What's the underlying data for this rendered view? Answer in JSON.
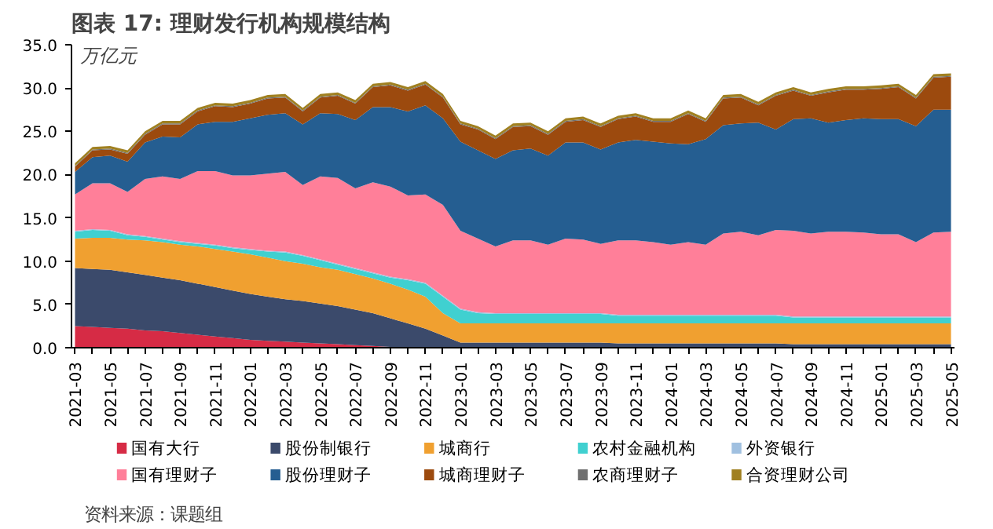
{
  "chart_data": {
    "type": "area",
    "stacked": true,
    "title": "图表 17: 理财发行机构规模结构",
    "ylabel": "万亿元",
    "annotations": [
      "资料来源：课题组"
    ],
    "categories": [
      "2021-03",
      null,
      "2021-05",
      null,
      "2021-07",
      null,
      "2021-09",
      null,
      "2021-11",
      null,
      "2022-01",
      null,
      "2022-03",
      null,
      "2022-05",
      null,
      "2022-07",
      null,
      "2022-09",
      null,
      "2022-11",
      null,
      "2023-01",
      null,
      "2023-03",
      null,
      "2023-05",
      null,
      "2023-07",
      null,
      "2023-09",
      null,
      "2023-11",
      null,
      "2024-01",
      null,
      "2024-03",
      null,
      "2024-05",
      null,
      "2024-07",
      null,
      "2024-09",
      null,
      "2024-11",
      null,
      "2025-01",
      null,
      "2025-03",
      null,
      "2025-05"
    ],
    "ylim": [
      0,
      35
    ],
    "yticks": [
      {
        "value": 0,
        "label": "0.0"
      },
      {
        "value": 5,
        "label": "5.0"
      },
      {
        "value": 10,
        "label": "10.0"
      },
      {
        "value": 15,
        "label": "15.0"
      },
      {
        "value": 20,
        "label": "20.0"
      },
      {
        "value": 25,
        "label": "25.0"
      },
      {
        "value": 30,
        "label": "30.0"
      },
      {
        "value": 35,
        "label": "35.0"
      }
    ],
    "grid": false,
    "legend": "bottom",
    "series": [
      {
        "name": "国有大行",
        "color": "#d62b45",
        "values": [
          2.5,
          2.4,
          2.3,
          2.2,
          2.0,
          1.9,
          1.7,
          1.5,
          1.3,
          1.1,
          0.9,
          0.8,
          0.7,
          0.6,
          0.5,
          0.4,
          0.3,
          0.2,
          0.1,
          0.1,
          0.1,
          0,
          0,
          0,
          0,
          0,
          0,
          0,
          0,
          0,
          0,
          0,
          0,
          0,
          0,
          0,
          0,
          0,
          0,
          0,
          0,
          0,
          0,
          0,
          0,
          0,
          0,
          0,
          0,
          0,
          0
        ]
      },
      {
        "name": "股份制银行",
        "color": "#3b4a6b",
        "values": [
          6.7,
          6.7,
          6.7,
          6.5,
          6.4,
          6.2,
          6.1,
          5.9,
          5.7,
          5.5,
          5.3,
          5.1,
          4.9,
          4.8,
          4.6,
          4.4,
          4.1,
          3.8,
          3.3,
          2.7,
          2.1,
          1.4,
          0.6,
          0.6,
          0.6,
          0.6,
          0.6,
          0.6,
          0.6,
          0.6,
          0.6,
          0.5,
          0.5,
          0.5,
          0.5,
          0.5,
          0.5,
          0.5,
          0.5,
          0.5,
          0.5,
          0.4,
          0.4,
          0.4,
          0.4,
          0.4,
          0.4,
          0.4,
          0.4,
          0.4,
          0.4
        ]
      },
      {
        "name": "城商行",
        "color": "#f0a030",
        "values": [
          3.4,
          3.6,
          3.7,
          3.8,
          4.0,
          4.1,
          4.1,
          4.3,
          4.4,
          4.5,
          4.6,
          4.5,
          4.4,
          4.3,
          4.2,
          4.2,
          4.1,
          4.0,
          4.0,
          3.9,
          3.7,
          2.6,
          2.2,
          2.2,
          2.2,
          2.2,
          2.2,
          2.2,
          2.2,
          2.2,
          2.2,
          2.3,
          2.3,
          2.3,
          2.3,
          2.3,
          2.3,
          2.3,
          2.3,
          2.3,
          2.3,
          2.4,
          2.4,
          2.4,
          2.4,
          2.4,
          2.4,
          2.4,
          2.4,
          2.4,
          2.4
        ]
      },
      {
        "name": "农村金融机构",
        "color": "#40d0d0",
        "values": [
          0.8,
          0.9,
          0.8,
          0.5,
          0.4,
          0.3,
          0.3,
          0.3,
          0.4,
          0.4,
          0.5,
          0.7,
          1.0,
          0.9,
          0.8,
          0.6,
          0.6,
          0.6,
          0.7,
          1.1,
          1.5,
          1.9,
          1.6,
          1.2,
          1.1,
          1.1,
          1.1,
          1.1,
          1.1,
          1.1,
          1.1,
          0.9,
          0.9,
          0.9,
          0.9,
          0.9,
          0.9,
          0.9,
          0.9,
          0.9,
          0.9,
          0.7,
          0.7,
          0.7,
          0.7,
          0.7,
          0.7,
          0.7,
          0.7,
          0.7,
          0.7
        ]
      },
      {
        "name": "外资银行",
        "color": "#a0c0e0",
        "values": [
          0.1,
          0.1,
          0.1,
          0.1,
          0.1,
          0.1,
          0.1,
          0.1,
          0.1,
          0.1,
          0.1,
          0.1,
          0.1,
          0.1,
          0.1,
          0.1,
          0.1,
          0.1,
          0.1,
          0.1,
          0.1,
          0.1,
          0.1,
          0.1,
          0.1,
          0.1,
          0.1,
          0.1,
          0.1,
          0.1,
          0.1,
          0.1,
          0.1,
          0.1,
          0.1,
          0.1,
          0.1,
          0.1,
          0.1,
          0.1,
          0.1,
          0.1,
          0.1,
          0.1,
          0.1,
          0.1,
          0.1,
          0.1,
          0.1,
          0.1,
          0.1
        ]
      },
      {
        "name": "国有理财子",
        "color": "#ff7f99",
        "values": [
          4.2,
          5.3,
          5.4,
          4.9,
          6.6,
          7.2,
          7.2,
          8.3,
          8.5,
          8.3,
          8.5,
          8.9,
          9.2,
          8.1,
          9.6,
          9.9,
          9.2,
          10.4,
          10.4,
          9.7,
          10.2,
          10.5,
          9.0,
          8.5,
          7.7,
          8.4,
          8.4,
          7.9,
          8.6,
          8.5,
          8.0,
          8.6,
          8.6,
          8.4,
          8.1,
          8.4,
          8.1,
          9.4,
          9.6,
          9.2,
          9.8,
          9.9,
          9.6,
          9.8,
          9.8,
          9.7,
          9.5,
          9.5,
          8.6,
          9.7,
          9.8
        ]
      },
      {
        "name": "股份理财子",
        "color": "#255e91",
        "values": [
          2.6,
          3.0,
          3.2,
          3.5,
          4.2,
          4.6,
          4.8,
          5.4,
          5.7,
          6.2,
          6.6,
          6.8,
          6.8,
          7.0,
          7.3,
          7.4,
          7.9,
          8.7,
          9.2,
          9.7,
          10.3,
          10.0,
          10.3,
          10.2,
          10.1,
          10.4,
          10.6,
          10.3,
          11.1,
          11.2,
          10.9,
          11.3,
          11.6,
          11.6,
          11.7,
          11.3,
          12.2,
          12.5,
          12.5,
          13.0,
          11.6,
          12.9,
          13.3,
          12.6,
          12.9,
          13.2,
          13.3,
          13.3,
          13.4,
          14.2,
          14.1
        ]
      },
      {
        "name": "城商理财子",
        "color": "#9c4a0e",
        "values": [
          0.6,
          0.8,
          0.7,
          0.9,
          0.9,
          1.4,
          1.5,
          1.5,
          1.8,
          1.7,
          1.7,
          1.9,
          1.8,
          1.5,
          1.8,
          2.1,
          1.9,
          2.3,
          2.5,
          2.4,
          2.4,
          2.4,
          2.0,
          2.4,
          2.3,
          2.7,
          2.6,
          2.4,
          2.4,
          2.6,
          2.6,
          2.7,
          2.7,
          2.3,
          2.5,
          3.5,
          2.0,
          3.1,
          3.0,
          2.0,
          3.9,
          3.3,
          2.6,
          3.5,
          3.5,
          3.3,
          3.5,
          3.7,
          3.2,
          3.7,
          3.8
        ]
      },
      {
        "name": "农商理财子",
        "color": "#707070",
        "values": [
          0.1,
          0.1,
          0.1,
          0.1,
          0.1,
          0.1,
          0.1,
          0.1,
          0.1,
          0.1,
          0.1,
          0.1,
          0.1,
          0.1,
          0.1,
          0.1,
          0.1,
          0.1,
          0.1,
          0.1,
          0.1,
          0.1,
          0.1,
          0.1,
          0.1,
          0.1,
          0.1,
          0.1,
          0.1,
          0.1,
          0.1,
          0.1,
          0.1,
          0.1,
          0.1,
          0.1,
          0.1,
          0.1,
          0.1,
          0.1,
          0.1,
          0.1,
          0.1,
          0.1,
          0.1,
          0.1,
          0.1,
          0.1,
          0.1,
          0.1,
          0.1
        ]
      },
      {
        "name": "合资理财公司",
        "color": "#a08020",
        "values": [
          0.3,
          0.3,
          0.3,
          0.3,
          0.3,
          0.3,
          0.3,
          0.3,
          0.3,
          0.3,
          0.3,
          0.3,
          0.3,
          0.3,
          0.3,
          0.3,
          0.3,
          0.3,
          0.3,
          0.3,
          0.3,
          0.3,
          0.3,
          0.3,
          0.3,
          0.3,
          0.3,
          0.3,
          0.3,
          0.3,
          0.3,
          0.3,
          0.3,
          0.3,
          0.3,
          0.3,
          0.3,
          0.3,
          0.3,
          0.3,
          0.3,
          0.3,
          0.3,
          0.3,
          0.3,
          0.3,
          0.3,
          0.3,
          0.3,
          0.3,
          0.3
        ]
      }
    ]
  }
}
